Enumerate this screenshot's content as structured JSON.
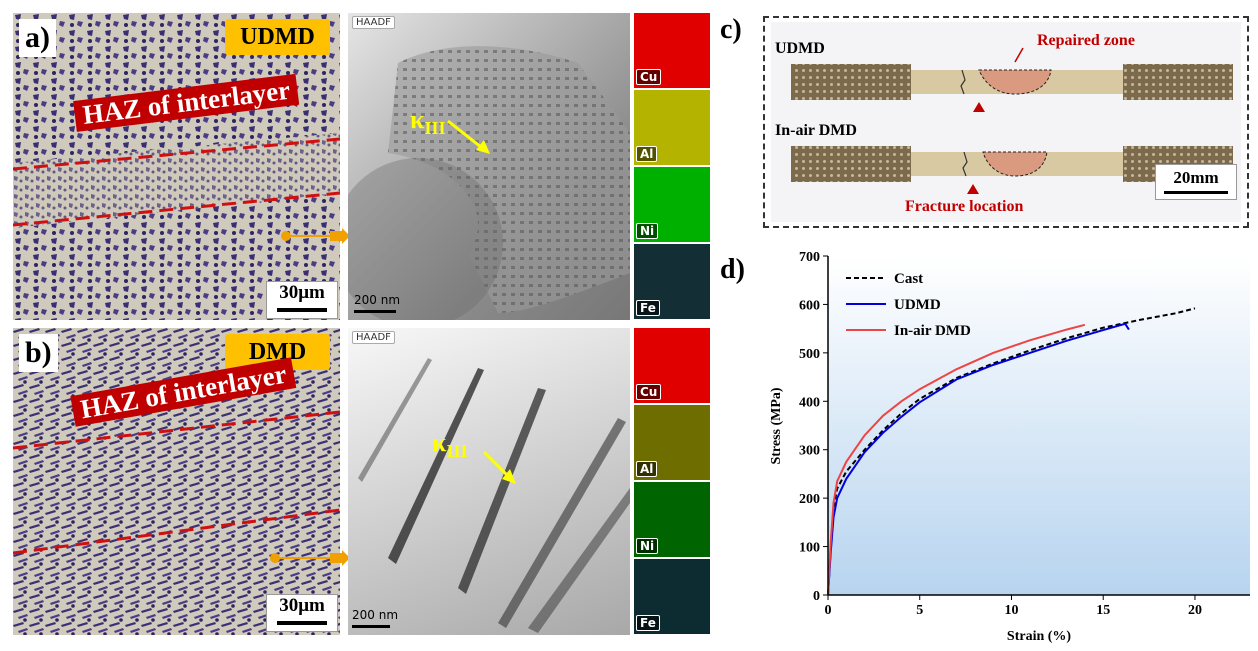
{
  "panels": {
    "a": {
      "letter": "a)",
      "tag": "UDMD",
      "haz_label": "HAZ of interlayer",
      "scale": "30μm",
      "tem": {
        "haadf": "HAADF",
        "scale": "200 nm",
        "phase": "κ",
        "phase_sub": "III"
      },
      "maps": [
        {
          "element": "Cu",
          "color": "#e00000"
        },
        {
          "element": "Al",
          "color": "#c8c800"
        },
        {
          "element": "Ni",
          "color": "#00c000"
        },
        {
          "element": "Fe",
          "color": "#1a3a40"
        }
      ]
    },
    "b": {
      "letter": "b)",
      "tag": "DMD",
      "haz_label": "HAZ of interlayer",
      "scale": "30μm",
      "tem": {
        "haadf": "HAADF",
        "scale": "200 nm",
        "phase": "κ",
        "phase_sub": "III"
      },
      "maps": [
        {
          "element": "Cu",
          "color": "#e00000"
        },
        {
          "element": "Al",
          "color": "#9a9a00"
        },
        {
          "element": "Ni",
          "color": "#00a000"
        },
        {
          "element": "Fe",
          "color": "#0c3c44"
        }
      ]
    },
    "c": {
      "letter": "c)",
      "sample1": "UDMD",
      "sample2": "In-air DMD",
      "repaired_zone": "Repaired zone",
      "fracture": "Fracture location",
      "scale": "20mm"
    },
    "d": {
      "letter": "d)"
    }
  },
  "chart_data": {
    "type": "line",
    "xlabel": "Strain (%)",
    "ylabel": "Stress (MPa)",
    "xlim": [
      0,
      23
    ],
    "ylim": [
      0,
      700
    ],
    "xticks": [
      0,
      5,
      10,
      15,
      20
    ],
    "yticks": [
      0,
      100,
      200,
      300,
      400,
      500,
      600,
      700
    ],
    "legend_position": "top-left",
    "series": [
      {
        "name": "Cast",
        "color": "#000000",
        "dash": true,
        "points": [
          [
            0,
            0
          ],
          [
            0.15,
            100
          ],
          [
            0.3,
            180
          ],
          [
            0.5,
            220
          ],
          [
            1,
            255
          ],
          [
            2,
            300
          ],
          [
            3,
            340
          ],
          [
            4,
            375
          ],
          [
            5,
            405
          ],
          [
            7,
            448
          ],
          [
            9,
            478
          ],
          [
            11,
            505
          ],
          [
            13,
            530
          ],
          [
            15,
            552
          ],
          [
            17,
            568
          ],
          [
            19,
            582
          ],
          [
            20,
            592
          ]
        ]
      },
      {
        "name": "UDMD",
        "color": "#0000dd",
        "dash": false,
        "points": [
          [
            0,
            0
          ],
          [
            0.15,
            90
          ],
          [
            0.3,
            160
          ],
          [
            0.5,
            200
          ],
          [
            1,
            240
          ],
          [
            2,
            295
          ],
          [
            3,
            335
          ],
          [
            4,
            368
          ],
          [
            5,
            398
          ],
          [
            7,
            445
          ],
          [
            9,
            475
          ],
          [
            11,
            500
          ],
          [
            13,
            525
          ],
          [
            15,
            547
          ],
          [
            16.2,
            560
          ],
          [
            16.4,
            548
          ]
        ]
      },
      {
        "name": "In-air DMD",
        "color": "#ee4444",
        "dash": false,
        "points": [
          [
            0,
            0
          ],
          [
            0.15,
            110
          ],
          [
            0.3,
            190
          ],
          [
            0.5,
            235
          ],
          [
            1,
            275
          ],
          [
            2,
            330
          ],
          [
            3,
            370
          ],
          [
            4,
            400
          ],
          [
            5,
            425
          ],
          [
            7,
            466
          ],
          [
            9,
            500
          ],
          [
            11,
            526
          ],
          [
            13,
            548
          ],
          [
            14,
            558
          ]
        ]
      }
    ]
  }
}
